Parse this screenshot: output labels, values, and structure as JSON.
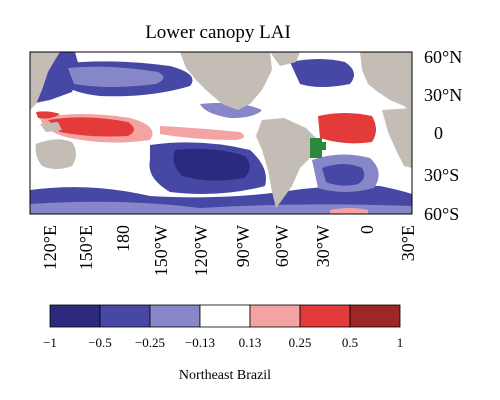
{
  "title": "Lower canopy LAI",
  "lat_labels": [
    "60°N",
    "30°N",
    "0",
    "30°S",
    "60°S"
  ],
  "lon_labels": [
    "120°E",
    "150°E",
    "180",
    "150°W",
    "120°W",
    "90°W",
    "60°W",
    "30°W",
    "0",
    "30°E"
  ],
  "colorbar": {
    "tick_labels": [
      "−1",
      "−0.5",
      "−0.25",
      "−0.13",
      "0.13",
      "0.25",
      "0.5",
      "1"
    ],
    "colors": [
      "#2b2a7e",
      "#4747a6",
      "#8686c8",
      "#ffffff",
      "#f4a3a3",
      "#e33a3a",
      "#9e2626"
    ],
    "label": "Northeast Brazil"
  },
  "map_colors": {
    "land": "#c3bdb6",
    "region_highlight": "#2a8a3a"
  }
}
